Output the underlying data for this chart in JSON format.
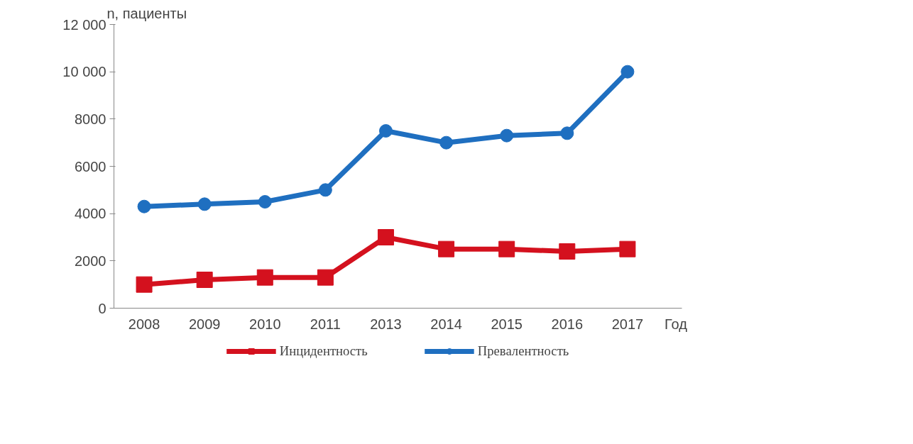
{
  "chart_data": {
    "type": "line",
    "ylabel": "n, пациенты",
    "xlabel": "Год",
    "categories": [
      "2008",
      "2009",
      "2010",
      "2011",
      "2013",
      "2014",
      "2015",
      "2016",
      "2017"
    ],
    "series": [
      {
        "name": "Инцидентность",
        "color": "#d4111e",
        "marker": "square",
        "values": [
          1000,
          1200,
          1300,
          1300,
          3000,
          2500,
          2500,
          2400,
          2500
        ]
      },
      {
        "name": "Превалентность",
        "color": "#1f6fc0",
        "marker": "circle",
        "values": [
          4300,
          4400,
          4500,
          5000,
          7500,
          7000,
          7300,
          7400,
          10000
        ]
      }
    ],
    "ylim": [
      0,
      12000
    ],
    "yticks": [
      0,
      2000,
      4000,
      6000,
      8000,
      {
        "value": 10000,
        "label": "10 000"
      },
      {
        "value": 12000,
        "label": "12 000"
      }
    ],
    "grid": false,
    "legend": "bottom",
    "line_style": "solid"
  }
}
